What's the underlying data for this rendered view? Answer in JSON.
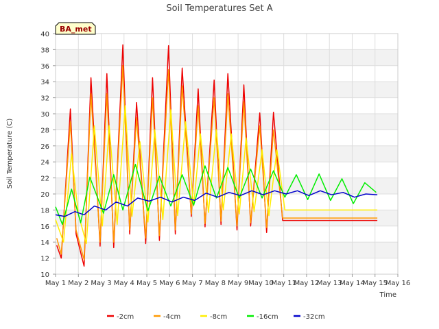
{
  "chart_data": {
    "type": "line",
    "title": "Soil Temperatures Set A",
    "xlabel": "Time",
    "ylabel": "Soil Temperature (C)",
    "badge": "BA_met",
    "xlim": [
      1,
      16
    ],
    "ylim": [
      10,
      40
    ],
    "xticks": [
      1,
      2,
      3,
      4,
      5,
      6,
      7,
      8,
      9,
      10,
      11,
      12,
      13,
      14,
      15,
      16
    ],
    "xtick_labels": [
      "May 1",
      "May 2",
      "May 3",
      "May 4",
      "May 5",
      "May 6",
      "May 7",
      "May 8",
      "May 9",
      "May 10",
      "May 11",
      "May 12",
      "May 13",
      "May 14",
      "May 15",
      "May 16"
    ],
    "yticks": [
      10,
      12,
      14,
      16,
      18,
      20,
      22,
      24,
      26,
      28,
      30,
      32,
      34,
      36,
      38,
      40
    ],
    "grid": true,
    "legend_position": "bottom",
    "series": [
      {
        "name": "-2cm",
        "color": "#ee0000",
        "x": [
          1.05,
          1.25,
          1.65,
          1.9,
          2.25,
          2.55,
          2.95,
          3.25,
          3.55,
          3.95,
          4.25,
          4.55,
          4.95,
          5.25,
          5.55,
          5.95,
          6.25,
          6.55,
          6.95,
          7.25,
          7.55,
          7.95,
          8.25,
          8.55,
          8.95,
          9.25,
          9.55,
          9.95,
          10.25,
          10.55,
          10.95,
          11.25,
          11.55,
          11.95,
          12.25,
          12.55,
          12.95,
          13.25,
          13.55,
          13.95,
          14.25,
          14.55,
          14.95,
          15.1
        ],
        "y": [
          13.6,
          12.0,
          30.6,
          15.0,
          11.0,
          34.5,
          13.5,
          35.0,
          13.3,
          38.6,
          15.0,
          31.4,
          13.8,
          34.5,
          14.2,
          38.5,
          15.0,
          35.7,
          17.2,
          33.1,
          15.9,
          34.2,
          16.2,
          35.0,
          15.5,
          33.6,
          16.0,
          30.1,
          15.2,
          30.2,
          16.7,
          16.7,
          16.7,
          16.7,
          16.7,
          16.7,
          16.7,
          16.7,
          16.7,
          16.7,
          16.7,
          16.7,
          16.7,
          16.7
        ]
      },
      {
        "name": "-4cm",
        "color": "#ff9900",
        "x": [
          1.05,
          1.25,
          1.65,
          1.9,
          2.25,
          2.55,
          2.95,
          3.25,
          3.55,
          3.95,
          4.25,
          4.55,
          4.95,
          5.25,
          5.55,
          5.95,
          6.25,
          6.55,
          6.95,
          7.25,
          7.55,
          7.95,
          8.25,
          8.55,
          8.95,
          9.25,
          9.55,
          9.95,
          10.25,
          10.55,
          10.95,
          11.25,
          11.55,
          11.95,
          12.25,
          12.55,
          12.95,
          13.25,
          13.55,
          13.95,
          14.25,
          14.55,
          14.95,
          15.1
        ],
        "y": [
          14.5,
          12.5,
          29.0,
          15.5,
          11.8,
          32.5,
          14.0,
          32.5,
          14.0,
          36.0,
          15.5,
          29.5,
          14.5,
          32.0,
          14.8,
          35.5,
          15.5,
          33.5,
          17.5,
          31.0,
          16.3,
          32.0,
          16.6,
          32.5,
          16.0,
          31.5,
          16.4,
          28.5,
          15.8,
          28.0,
          17.0,
          17.0,
          17.0,
          17.0,
          17.0,
          17.0,
          17.0,
          17.0,
          17.0,
          17.0,
          17.0,
          17.0,
          17.0,
          17.0
        ]
      },
      {
        "name": "-8cm",
        "color": "#ffee00",
        "x": [
          1.0,
          1.35,
          1.7,
          2.0,
          2.35,
          2.7,
          3.05,
          3.35,
          3.7,
          4.05,
          4.35,
          4.7,
          5.05,
          5.35,
          5.7,
          6.05,
          6.35,
          6.7,
          7.05,
          7.35,
          7.7,
          8.05,
          8.35,
          8.7,
          9.05,
          9.35,
          9.7,
          10.05,
          10.35,
          10.7,
          11.05,
          11.35,
          11.7,
          12.05,
          12.35,
          12.7,
          13.05,
          13.35,
          13.7,
          14.05,
          14.35,
          14.7,
          15.05,
          15.1
        ],
        "y": [
          16.8,
          14.0,
          25.0,
          17.5,
          13.8,
          28.5,
          16.0,
          28.5,
          16.2,
          31.0,
          17.2,
          26.5,
          16.5,
          28.0,
          16.8,
          30.5,
          17.3,
          29.0,
          18.5,
          27.5,
          17.7,
          28.0,
          18.0,
          27.5,
          17.5,
          27.0,
          17.8,
          25.5,
          17.3,
          25.5,
          18.0,
          18.0,
          18.0,
          18.0,
          18.0,
          18.0,
          18.0,
          18.0,
          18.0,
          18.0,
          18.0,
          18.0,
          18.0,
          18.0
        ]
      },
      {
        "name": "-16cm",
        "color": "#00ee00",
        "x": [
          1.0,
          1.3,
          1.7,
          2.1,
          2.5,
          3.1,
          3.55,
          3.95,
          4.5,
          5.05,
          5.55,
          6.05,
          6.55,
          7.05,
          7.55,
          8.05,
          8.55,
          9.05,
          9.55,
          10.05,
          10.55,
          11.05,
          11.55,
          12.05,
          12.55,
          13.05,
          13.55,
          14.05,
          14.55,
          15.05
        ],
        "y": [
          18.4,
          16.2,
          20.6,
          16.4,
          22.1,
          17.6,
          22.4,
          18.0,
          23.7,
          17.9,
          22.2,
          18.5,
          22.4,
          18.6,
          23.5,
          19.5,
          23.3,
          19.5,
          23.1,
          19.5,
          22.9,
          19.6,
          22.4,
          19.3,
          22.5,
          19.2,
          21.9,
          18.8,
          21.4,
          20.2
        ]
      },
      {
        "name": "-32cm",
        "color": "#0000cc",
        "x": [
          1.0,
          1.4,
          1.85,
          2.25,
          2.7,
          3.2,
          3.65,
          4.15,
          4.6,
          5.1,
          5.6,
          6.1,
          6.6,
          7.1,
          7.6,
          8.1,
          8.6,
          9.1,
          9.6,
          10.1,
          10.6,
          11.1,
          11.6,
          12.1,
          12.6,
          13.1,
          13.6,
          14.1,
          14.6,
          15.1
        ],
        "y": [
          17.4,
          17.2,
          17.8,
          17.4,
          18.5,
          18.0,
          19.0,
          18.5,
          19.5,
          19.1,
          19.6,
          19.0,
          19.6,
          19.2,
          20.1,
          19.6,
          20.2,
          19.8,
          20.4,
          19.9,
          20.4,
          20.0,
          20.4,
          19.8,
          20.4,
          19.9,
          20.2,
          19.6,
          20.0,
          19.9
        ]
      }
    ]
  }
}
